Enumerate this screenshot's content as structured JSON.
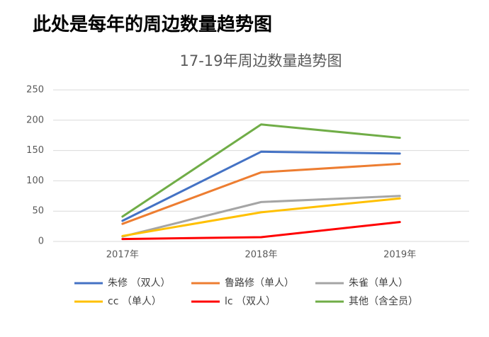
{
  "header": {
    "title": "此处是每年的周边数量趋势图"
  },
  "chart_data": {
    "type": "line",
    "title": "17-19年周边数量趋势图",
    "categories": [
      "2017年",
      "2018年",
      "2019年"
    ],
    "series": [
      {
        "name": "朱修 （双人）",
        "color": "#4472c4",
        "values": [
          34,
          148,
          145
        ]
      },
      {
        "name": "鲁路修（单人）",
        "color": "#ed7d31",
        "values": [
          29,
          114,
          128
        ]
      },
      {
        "name": "朱雀（单人）",
        "color": "#a5a5a5",
        "values": [
          8,
          65,
          75
        ]
      },
      {
        "name": "cc （单人）",
        "color": "#ffc000",
        "values": [
          9,
          48,
          71
        ]
      },
      {
        "name": "lc （双人）",
        "color": "#ff0000",
        "values": [
          4,
          7,
          32
        ]
      },
      {
        "name": "其他（含全员）",
        "color": "#70ad47",
        "values": [
          41,
          193,
          171
        ]
      }
    ],
    "ylim": [
      0,
      250
    ],
    "yticks": [
      0,
      50,
      100,
      150,
      200,
      250
    ],
    "grid": true
  }
}
